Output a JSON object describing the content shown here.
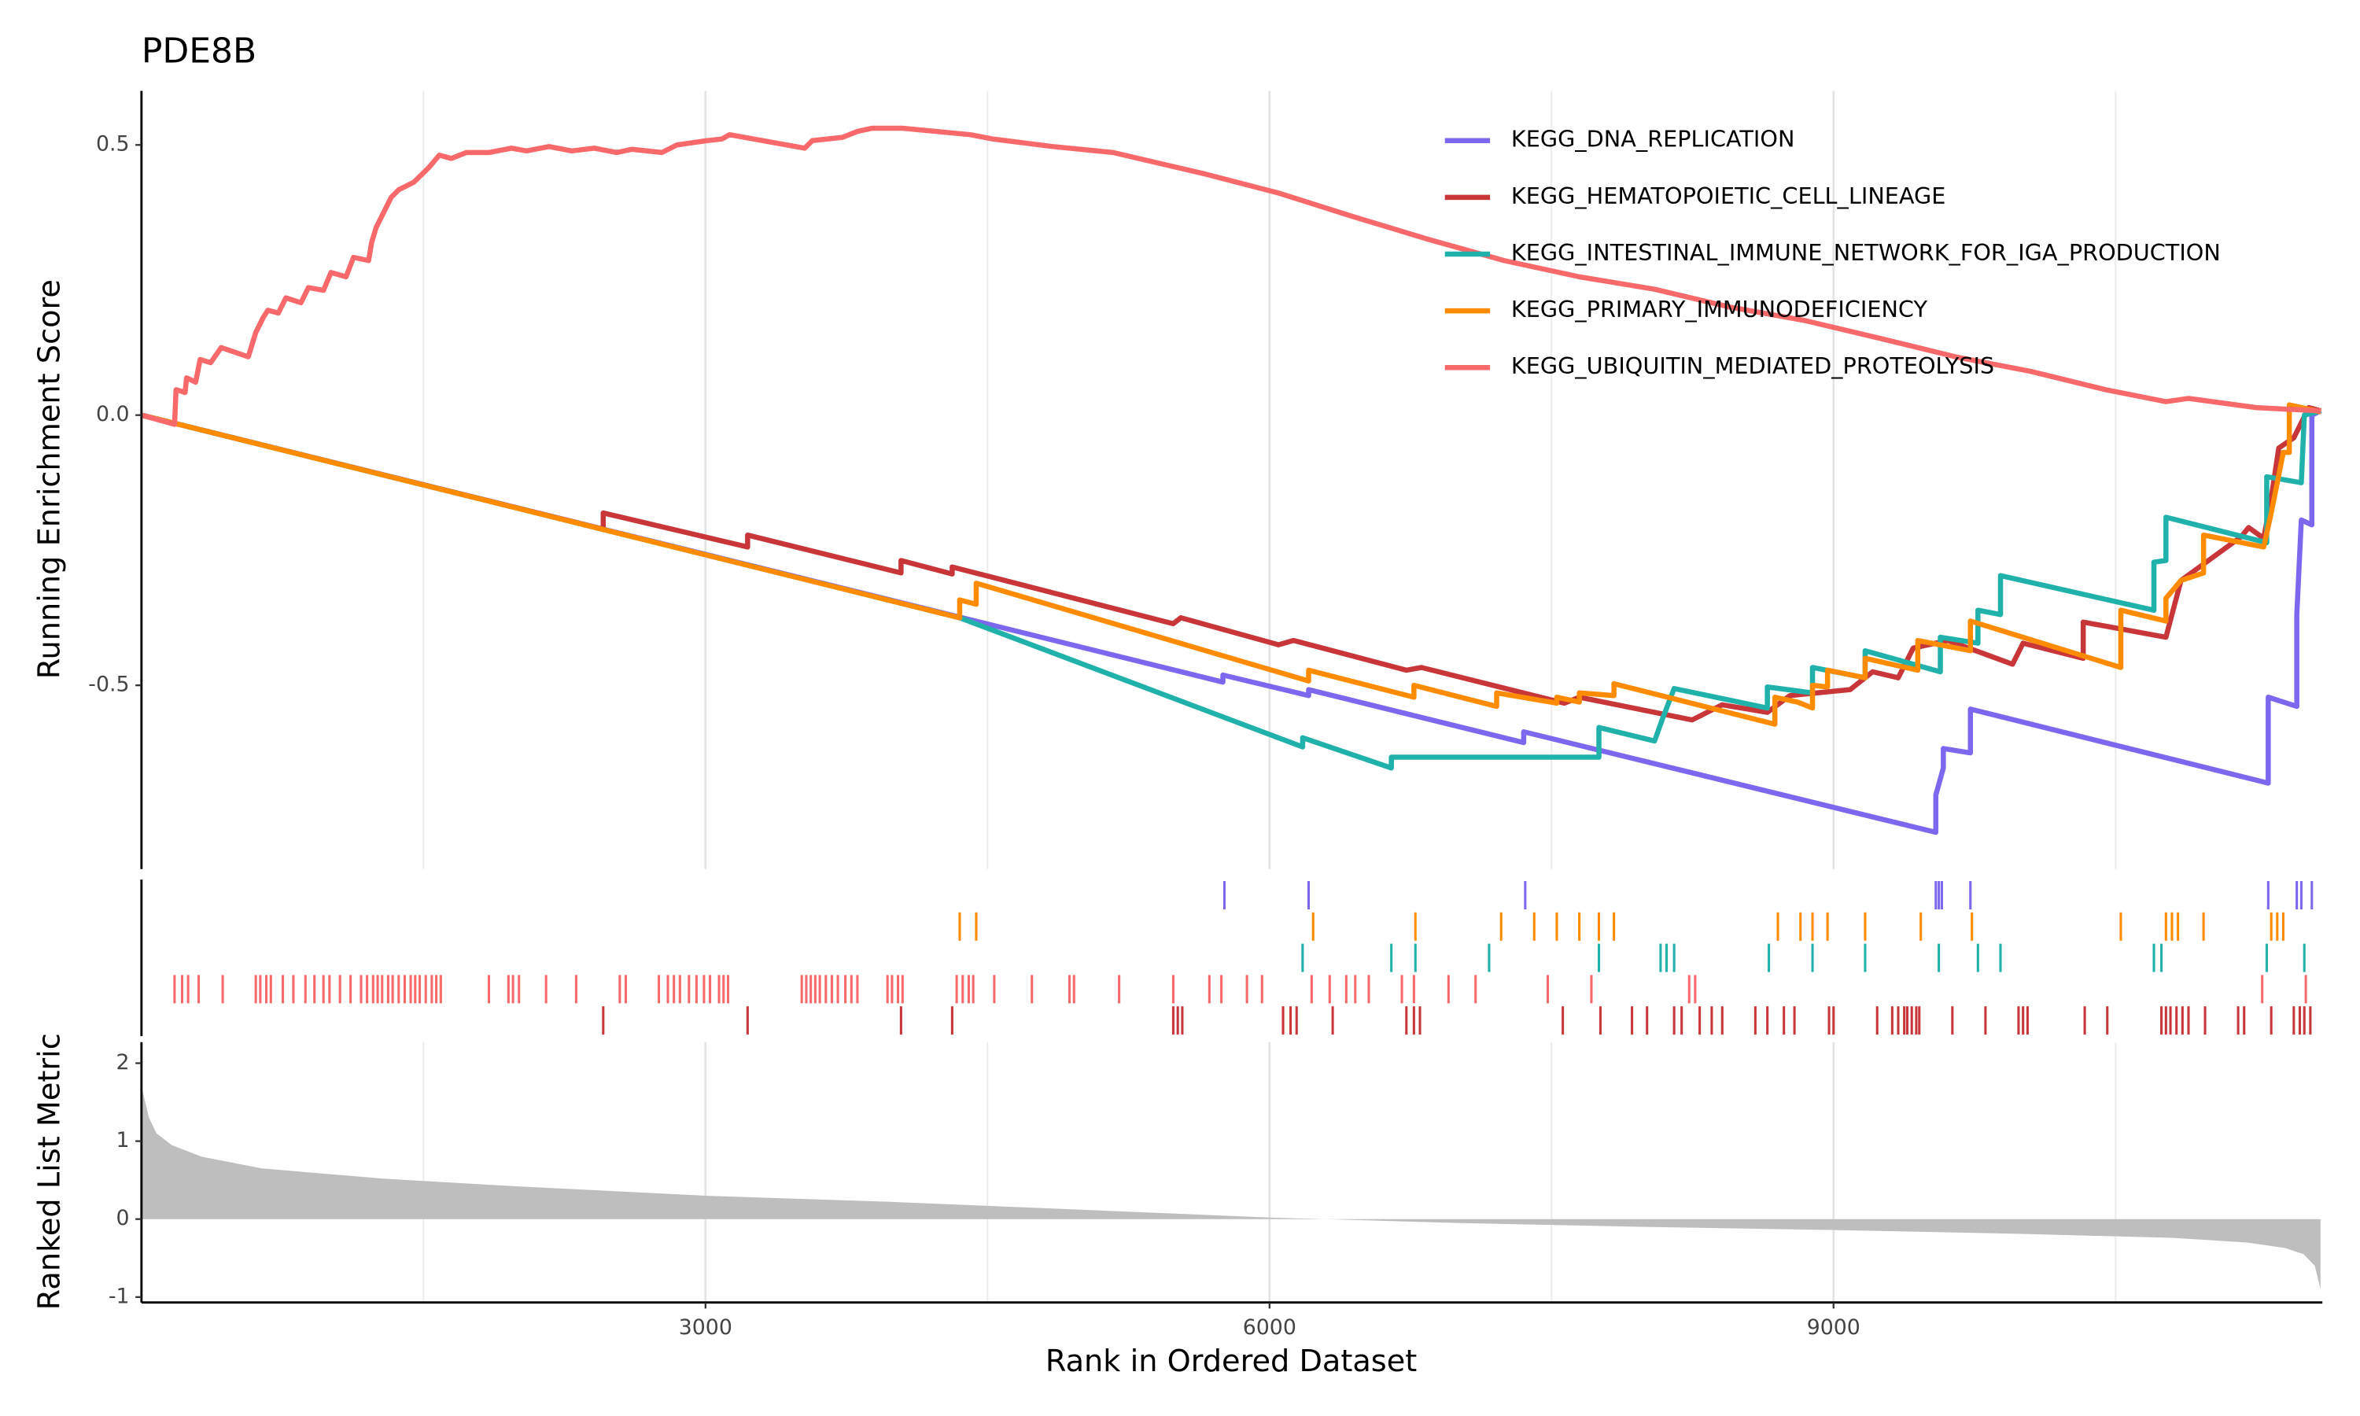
{
  "chart_data": [
    {
      "type": "line",
      "title": "PDE8B",
      "y_label": "Running Enrichment Score",
      "xlim": [
        0,
        11600
      ],
      "ylim": [
        -0.84,
        0.6
      ],
      "yticks": [
        0.5,
        {
          "value": 0,
          "label": "0.0"
        },
        -0.5
      ],
      "xticks": [
        3000,
        6000,
        9000
      ],
      "xminor": [
        1500,
        4500,
        7500,
        10500
      ],
      "grid": "x",
      "legend": "top-right",
      "series": [
        {
          "name": "KEGG_DNA_REPLICATION",
          "color": "#7b68ee",
          "x": [
            0,
            5752,
            5752,
            6208,
            6208,
            7352,
            7352,
            9544,
            9544,
            9584,
            9584,
            9728,
            9728,
            11312,
            11312,
            11464,
            11464,
            11488,
            11544,
            11544,
            11592
          ],
          "values": [
            0,
            -0.494,
            -0.481,
            -0.519,
            -0.508,
            -0.606,
            -0.586,
            -0.772,
            -0.703,
            -0.653,
            -0.617,
            -0.625,
            -0.544,
            -0.681,
            -0.522,
            -0.539,
            -0.369,
            -0.194,
            -0.203,
            0,
            0.008
          ]
        },
        {
          "name": "KEGG_HEMATOPOIETIC_CELL_LINEAGE",
          "color": "#c8363a",
          "x": [
            0,
            2456,
            2456,
            3224,
            3224,
            4040,
            4040,
            4312,
            4312,
            5488,
            5528,
            6048,
            6128,
            6728,
            6808,
            7568,
            7648,
            8248,
            8408,
            8648,
            8768,
            9088,
            9208,
            9344,
            9424,
            9608,
            9952,
            10008,
            10328,
            10328,
            10768,
            10848,
            11168,
            11208,
            11288,
            11328,
            11368,
            11448,
            11528,
            11592
          ],
          "values": [
            0,
            -0.211,
            -0.181,
            -0.244,
            -0.222,
            -0.292,
            -0.269,
            -0.294,
            -0.281,
            -0.386,
            -0.375,
            -0.425,
            -0.417,
            -0.472,
            -0.467,
            -0.533,
            -0.522,
            -0.564,
            -0.536,
            -0.55,
            -0.519,
            -0.508,
            -0.475,
            -0.486,
            -0.431,
            -0.417,
            -0.461,
            -0.422,
            -0.45,
            -0.383,
            -0.411,
            -0.306,
            -0.225,
            -0.208,
            -0.228,
            -0.153,
            -0.061,
            -0.042,
            0.014,
            0.008
          ]
        },
        {
          "name": "KEGG_INTESTINAL_IMMUNE_NETWORK_FOR_IGA_PRODUCTION",
          "color": "#20b2aa",
          "x": [
            0,
            4352,
            6176,
            6176,
            6648,
            6648,
            7752,
            7752,
            8048,
            8088,
            8152,
            8648,
            8648,
            8888,
            8888,
            9168,
            9168,
            9568,
            9568,
            9768,
            9768,
            9888,
            9888,
            10704,
            10704,
            10768,
            10768,
            11304,
            11304,
            11488,
            11504,
            11592
          ],
          "values": [
            0,
            -0.375,
            -0.614,
            -0.597,
            -0.653,
            -0.633,
            -0.633,
            -0.578,
            -0.603,
            -0.564,
            -0.506,
            -0.542,
            -0.503,
            -0.514,
            -0.467,
            -0.486,
            -0.436,
            -0.475,
            -0.411,
            -0.422,
            -0.361,
            -0.369,
            -0.297,
            -0.361,
            -0.272,
            -0.269,
            -0.189,
            -0.236,
            -0.114,
            -0.125,
            0,
            0.008
          ]
        },
        {
          "name": "KEGG_PRIMARY_IMMUNODEFICIENCY",
          "color": "#ff8c00",
          "x": [
            0,
            4352,
            4352,
            4440,
            4440,
            6208,
            6208,
            6768,
            6768,
            7208,
            7208,
            7528,
            7528,
            7648,
            7648,
            7832,
            7832,
            8688,
            8688,
            8808,
            8888,
            8888,
            8968,
            8968,
            9168,
            9168,
            9448,
            9448,
            9728,
            9728,
            10528,
            10528,
            10768,
            10768,
            10848,
            10968,
            10968,
            11288,
            11328,
            11392,
            11424,
            11424,
            11592
          ],
          "values": [
            0,
            -0.375,
            -0.342,
            -0.35,
            -0.311,
            -0.492,
            -0.472,
            -0.522,
            -0.5,
            -0.539,
            -0.514,
            -0.533,
            -0.522,
            -0.531,
            -0.514,
            -0.519,
            -0.497,
            -0.572,
            -0.522,
            -0.531,
            -0.542,
            -0.5,
            -0.503,
            -0.472,
            -0.486,
            -0.45,
            -0.472,
            -0.417,
            -0.436,
            -0.381,
            -0.467,
            -0.361,
            -0.381,
            -0.339,
            -0.306,
            -0.292,
            -0.222,
            -0.244,
            -0.181,
            -0.069,
            -0.069,
            0.019,
            0.006
          ]
        },
        {
          "name": "KEGG_UBIQUITIN_MEDIATED_PROTEOLYSIS",
          "color": "#f8696b",
          "x": [
            0,
            176,
            184,
            232,
            240,
            288,
            312,
            368,
            424,
            568,
            608,
            648,
            672,
            728,
            768,
            848,
            888,
            968,
            1008,
            1088,
            1128,
            1208,
            1224,
            1248,
            1288,
            1328,
            1368,
            1448,
            1528,
            1584,
            1648,
            1728,
            1848,
            1968,
            2048,
            2168,
            2288,
            2408,
            2528,
            2608,
            2768,
            2848,
            3008,
            3088,
            3128,
            3528,
            3568,
            3728,
            3808,
            3888,
            4048,
            4408,
            4528,
            4848,
            5168,
            5648,
            6048,
            6448,
            6848,
            7248,
            7648,
            8048,
            8448,
            8848,
            9248,
            9648,
            10048,
            10448,
            10768,
            10888,
            11248,
            11408,
            11592
          ],
          "values": [
            0,
            -0.017,
            0.047,
            0.042,
            0.069,
            0.061,
            0.103,
            0.097,
            0.125,
            0.108,
            0.153,
            0.181,
            0.194,
            0.189,
            0.217,
            0.208,
            0.236,
            0.231,
            0.264,
            0.256,
            0.292,
            0.286,
            0.319,
            0.347,
            0.375,
            0.403,
            0.417,
            0.431,
            0.458,
            0.481,
            0.475,
            0.486,
            0.486,
            0.494,
            0.489,
            0.497,
            0.489,
            0.494,
            0.486,
            0.492,
            0.486,
            0.5,
            0.508,
            0.511,
            0.519,
            0.494,
            0.508,
            0.514,
            0.525,
            0.531,
            0.531,
            0.519,
            0.511,
            0.497,
            0.486,
            0.447,
            0.411,
            0.367,
            0.325,
            0.286,
            0.256,
            0.233,
            0.2,
            0.175,
            0.142,
            0.108,
            0.081,
            0.047,
            0.025,
            0.031,
            0.014,
            0.011,
            0.008
          ]
        }
      ]
    },
    {
      "type": "rug",
      "xlim": [
        0,
        11600
      ],
      "xminor": [
        1500,
        4500,
        7500,
        10500
      ],
      "series": [
        {
          "color": "#7b68ee",
          "x": [
            5760,
            6208,
            7360,
            9544,
            9560,
            9576,
            9728,
            11312,
            11464,
            11488,
            11544
          ]
        },
        {
          "color": "#ff8c00",
          "x": [
            4352,
            4440,
            6232,
            6776,
            7232,
            7408,
            7528,
            7648,
            7752,
            7832,
            8704,
            8824,
            8888,
            8968,
            9168,
            9464,
            9736,
            10528,
            10768,
            10800,
            10832,
            10968,
            11328,
            11360,
            11392
          ]
        },
        {
          "color": "#20b2aa",
          "x": [
            6176,
            6648,
            6776,
            7168,
            7752,
            8080,
            8112,
            8152,
            8656,
            8888,
            9168,
            9560,
            9768,
            9888,
            10704,
            10744,
            11304,
            11504
          ]
        },
        {
          "color": "#f8696b",
          "x": [
            176,
            216,
            248,
            304,
            432,
            608,
            632,
            664,
            688,
            752,
            808,
            872,
            920,
            968,
            1000,
            1056,
            1112,
            1168,
            1200,
            1232,
            1256,
            1280,
            1312,
            1336,
            1368,
            1400,
            1432,
            1456,
            1480,
            1512,
            1544,
            1568,
            1592,
            1848,
            1952,
            1976,
            2008,
            2152,
            2312,
            2544,
            2576,
            2752,
            2800,
            2832,
            2864,
            2912,
            2952,
            2992,
            3024,
            3072,
            3096,
            3120,
            3512,
            3536,
            3560,
            3584,
            3608,
            3640,
            3672,
            3704,
            3744,
            3776,
            3808,
            3968,
            3992,
            4024,
            4048,
            4336,
            4368,
            4400,
            4424,
            4536,
            4736,
            4936,
            4960,
            5200,
            5488,
            5680,
            5744,
            5880,
            5960,
            6224,
            6320,
            6408,
            6456,
            6528,
            6704,
            6768,
            6952,
            7096,
            7480,
            7712,
            8232,
            8264,
            11280,
            11512
          ]
        },
        {
          "color": "#c8363a",
          "x": [
            2456,
            3224,
            4040,
            4312,
            5488,
            5512,
            5536,
            6072,
            6112,
            6144,
            6336,
            6728,
            6768,
            6800,
            7560,
            7760,
            7928,
            8008,
            8152,
            8192,
            8288,
            8352,
            8408,
            8584,
            8648,
            8736,
            8792,
            8976,
            9000,
            9232,
            9312,
            9344,
            9376,
            9392,
            9416,
            9440,
            9456,
            9632,
            9808,
            9984,
            10008,
            10032,
            10336,
            10456,
            10744,
            10768,
            10792,
            10824,
            10856,
            10888,
            10976,
            11152,
            11184,
            11328,
            11448,
            11480,
            11504,
            11536
          ]
        }
      ]
    },
    {
      "type": "area",
      "y_label": "Ranked List Metric",
      "x_label": "Rank in Ordered Dataset",
      "color": "#bebebe",
      "xlim": [
        0,
        11600
      ],
      "ylim": [
        -1.07,
        2.27
      ],
      "yticks": [
        2,
        1,
        0,
        -1
      ],
      "xticks": [
        3000,
        6000,
        9000
      ],
      "xminor": [
        1500,
        4500,
        7500,
        10500
      ],
      "grid": "x",
      "x": [
        0,
        40,
        80,
        160,
        320,
        640,
        1280,
        2000,
        3000,
        4000,
        5000,
        6000,
        7000,
        8000,
        9000,
        10000,
        10800,
        11200,
        11400,
        11500,
        11560,
        11590
      ],
      "values": [
        1.7,
        1.3,
        1.1,
        0.95,
        0.8,
        0.65,
        0.52,
        0.42,
        0.3,
        0.22,
        0.12,
        0.02,
        -0.05,
        -0.1,
        -0.14,
        -0.19,
        -0.24,
        -0.3,
        -0.37,
        -0.45,
        -0.6,
        -0.9
      ]
    }
  ]
}
